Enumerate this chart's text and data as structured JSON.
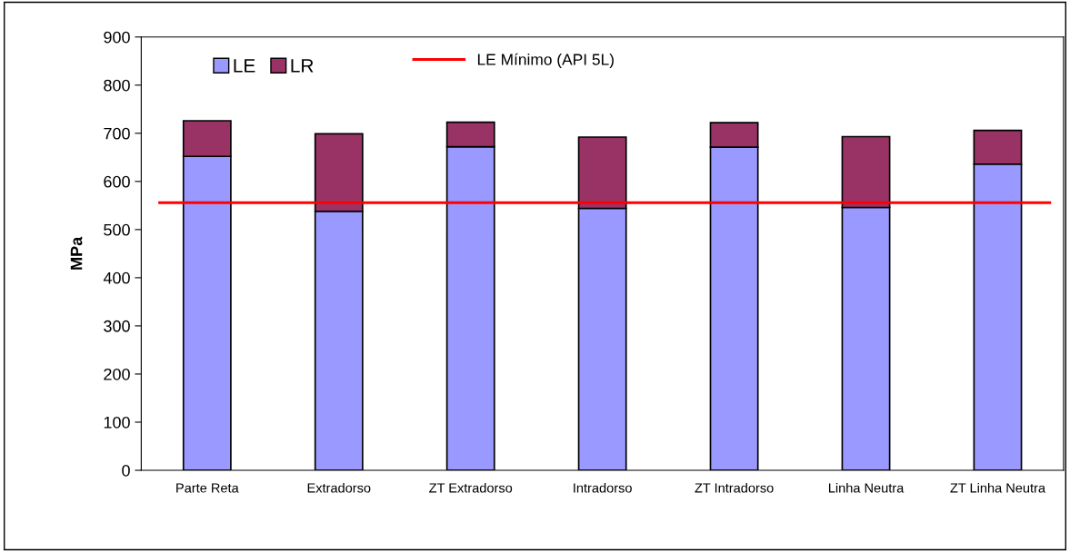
{
  "chart_data": {
    "type": "bar",
    "stacked": true,
    "ylabel": "MPa",
    "categories": [
      "Parte Reta",
      "Extradorso",
      "ZT Extradorso",
      "Intradorso",
      "ZT Intradorso",
      "Linha Neutra",
      "ZT Linha Neutra"
    ],
    "series": [
      {
        "name": "LE",
        "color": "#9999ff",
        "values": [
          652,
          538,
          672,
          544,
          671,
          546,
          636
        ]
      },
      {
        "name": "LR",
        "color": "#993366",
        "values": [
          74,
          161,
          51,
          148,
          51,
          147,
          70
        ]
      }
    ],
    "ref_lines": [
      {
        "axis": "y",
        "value": 556,
        "label": "LE Mínimo (API 5L)",
        "color": "#ff0000"
      }
    ],
    "ylim": [
      0,
      900
    ],
    "yticks": [
      0,
      100,
      200,
      300,
      400,
      500,
      600,
      700,
      800,
      900
    ],
    "legend": "top left"
  }
}
